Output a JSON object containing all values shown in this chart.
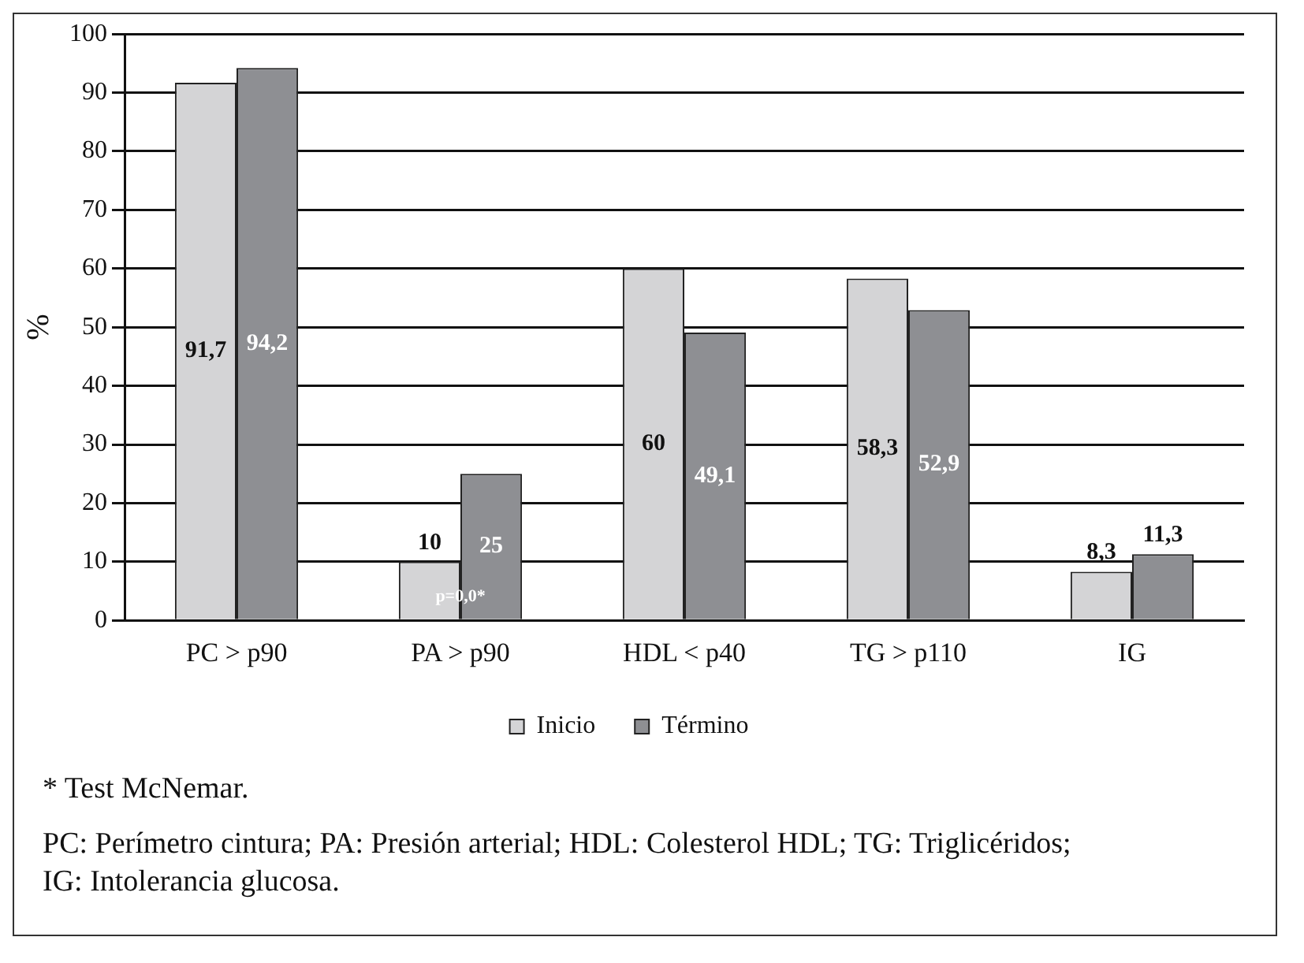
{
  "chart_data": {
    "type": "bar",
    "ylabel": "%",
    "categories": [
      "PC > p90",
      "PA > p90",
      "HDL < p40",
      "TG > p110",
      "IG"
    ],
    "series": [
      {
        "name": "Inicio",
        "color": "#d4d4d6",
        "values": [
          91.7,
          10,
          60,
          58.3,
          8.3
        ],
        "value_labels": [
          "91,7",
          "10",
          "60",
          "58,3",
          "8,3"
        ]
      },
      {
        "name": "Término",
        "color": "#8e8f93",
        "values": [
          94.2,
          25,
          49.1,
          52.9,
          11.3
        ],
        "value_labels": [
          "94,2",
          "25",
          "49,1",
          "52,9",
          "11,3"
        ]
      }
    ],
    "ylim": [
      0,
      100
    ],
    "yticks": [
      0,
      10,
      20,
      30,
      40,
      50,
      60,
      70,
      80,
      90,
      100
    ],
    "grid": "y",
    "legend": "bottom",
    "annotations": [
      {
        "text": "p=0,0*",
        "x": "PA > p90",
        "y": 4
      },
      "* Test McNemar.",
      "PC: Perímetro cintura; PA: Presión arterial; HDL: Colesterol HDL; TG: Triglicéridos; IG: Intolerancia glucosa."
    ]
  }
}
